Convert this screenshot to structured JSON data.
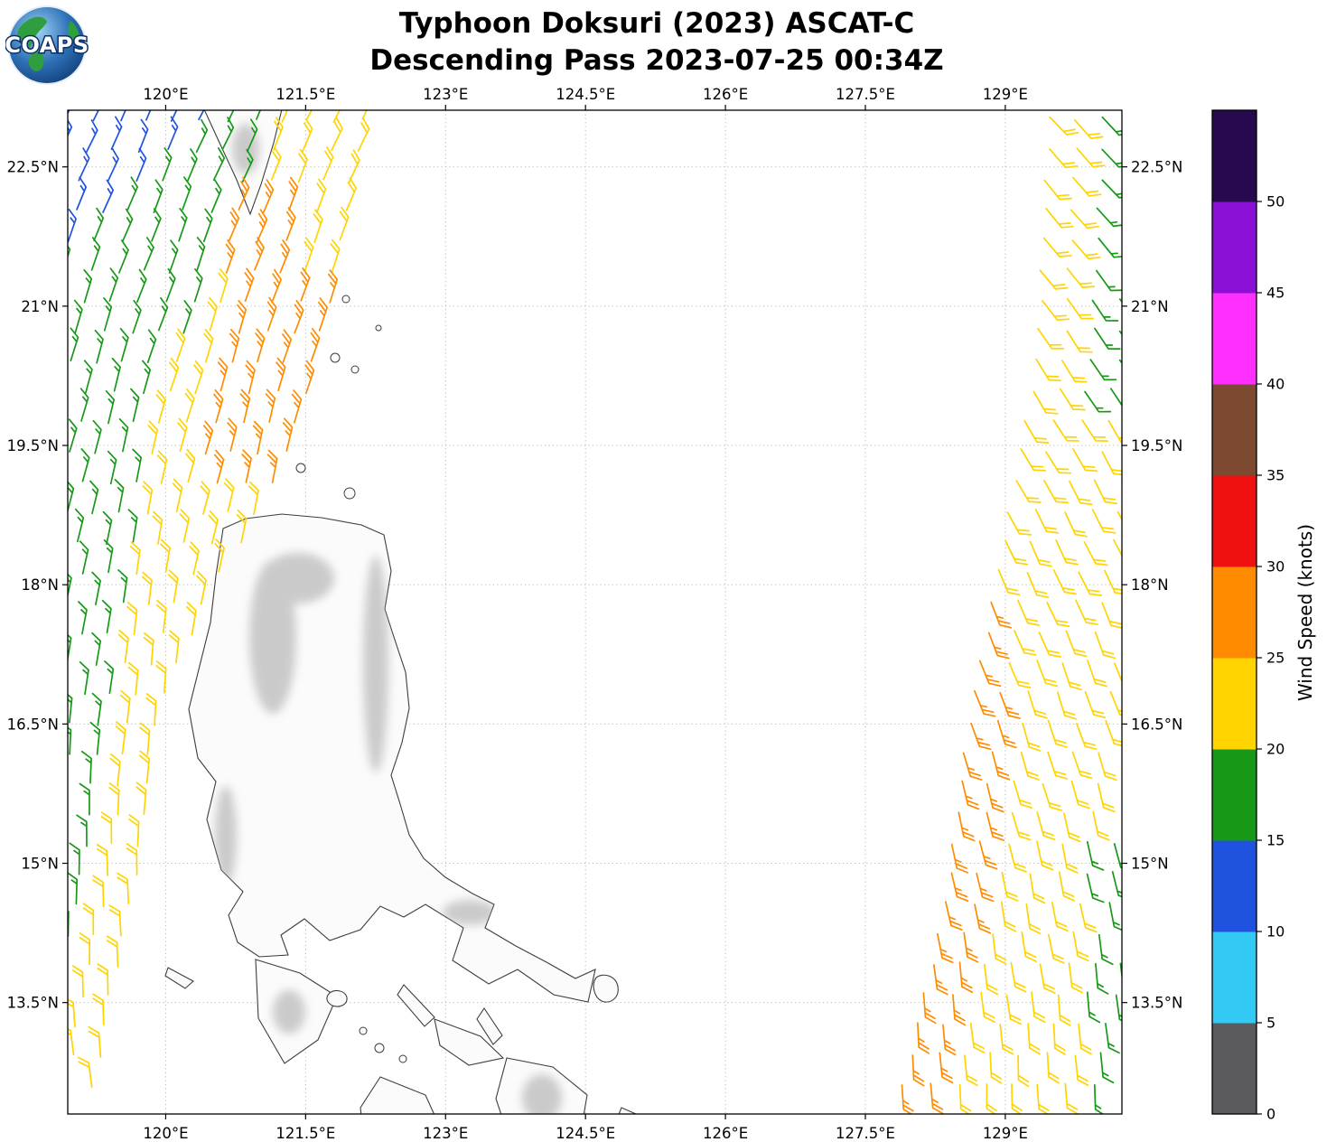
{
  "logo": {
    "text": "COAPS"
  },
  "header": {
    "title": "Typhoon Doksuri (2023) ASCAT-C",
    "subtitle": "Descending Pass 2023-07-25 00:34Z"
  },
  "chart_data": {
    "type": "wind_barb_map",
    "title": "Typhoon Doksuri (2023) ASCAT-C",
    "subtitle": "Descending Pass 2023-07-25 00:34Z",
    "x_axis": {
      "tick_values": [
        120,
        121.5,
        123,
        124.5,
        126,
        127.5,
        129
      ],
      "tick_labels": [
        "120°E",
        "121.5°E",
        "123°E",
        "124.5°E",
        "126°E",
        "127.5°E",
        "129°E"
      ],
      "range": [
        118.95,
        130.25
      ]
    },
    "y_axis": {
      "tick_values": [
        22.5,
        21,
        19.5,
        18,
        16.5,
        15,
        13.5
      ],
      "tick_labels": [
        "22.5°N",
        "21°N",
        "19.5°N",
        "18°N",
        "16.5°N",
        "15°N",
        "13.5°N"
      ],
      "range": [
        12.3,
        23.11
      ]
    },
    "grid": "dotted",
    "colorbar": {
      "label": "Wind Speed (knots)",
      "tick_values": [
        0,
        5,
        10,
        15,
        20,
        25,
        30,
        35,
        40,
        45,
        50
      ],
      "range": [
        0,
        55
      ],
      "segment_colors": [
        "#5a5a5c",
        "#33c9f5",
        "#2052e0",
        "#179917",
        "#ffd400",
        "#ff8c00",
        "#f01010",
        "#7b4a30",
        "#ff30ff",
        "#8a10d8",
        "#26094e"
      ]
    },
    "barb_speeds_knots": {
      "blue": 13,
      "green": 17,
      "yellow": 22,
      "orange": 27
    },
    "swaths": [
      {
        "name": "wind-barbs-west-swath",
        "edge_side": "right",
        "edge_points": [
          [
            23.1,
            122.25
          ],
          [
            21.0,
            121.85
          ],
          [
            19.5,
            121.45
          ],
          [
            18.5,
            120.95
          ],
          [
            18.0,
            120.6
          ],
          [
            17.0,
            120.18
          ],
          [
            16.5,
            119.98
          ],
          [
            15.0,
            119.82
          ],
          [
            13.5,
            119.5
          ],
          [
            12.3,
            119.3
          ]
        ],
        "columns": 14,
        "col_step": -0.29,
        "col_offset": -0.12,
        "row_lat_start": 23.0,
        "row_lat_end": 12.38,
        "row_step": 0.325,
        "direction_from": {
          "ref_lat": 18,
          "base_deg": 10,
          "per_lat_deg": 3.0
        },
        "speed_rules": [
          {
            "when": {
              "lat_min": 19.3,
              "lon_lt_line": {
                "lat0": 21.48,
                "lon0": 118.95,
                "slope": 1.098
              }
            },
            "speed": 13
          },
          {
            "when": {
              "lat_min": 19.3,
              "lon_lt_line": {
                "lat0": 19.5,
                "lon0": 119.72,
                "slope": 0.401
              }
            },
            "speed": 17
          },
          {
            "when": {
              "lat_min": 21.2,
              "lat_max": 22.1,
              "d_min": 0.45,
              "d_max": 1.35
            },
            "speed": 27
          },
          {
            "when": {
              "lat_min": 19.6,
              "lat_max": 21.2,
              "d_max": 1.2
            },
            "speed": 27
          },
          {
            "when": {
              "lat_min": 18.8,
              "lat_max": 19.6,
              "d_max_dyn": {
                "base": 1.2,
                "ref_lat": 19.6,
                "per_lat": -0.65
              }
            },
            "speed": 27
          },
          {
            "when": {
              "lat_min": 19.3
            },
            "speed": 22
          },
          {
            "when": {
              "lat_min": 14.0,
              "d_min_dyn": {
                "base": 0.5,
                "ref_lat": 16.5,
                "per_lat": 0.35,
                "floor": 0.5
              }
            },
            "speed": 17
          },
          {
            "when": {},
            "speed": 22
          }
        ]
      },
      {
        "name": "wind-barbs-east-swath",
        "edge_side": "left",
        "edge_points": [
          [
            23.1,
            129.4
          ],
          [
            20.4,
            129.26
          ],
          [
            18.0,
            128.82
          ],
          [
            16.5,
            128.53
          ],
          [
            14.6,
            128.29
          ],
          [
            12.3,
            127.76
          ]
        ],
        "columns": 9,
        "col_step": 0.29,
        "col_offset": 0.08,
        "row_lat_start": 23.02,
        "row_lat_end": 12.38,
        "row_step": 0.325,
        "direction_from": {
          "ref_lat": 15,
          "base_deg": 168,
          "per_lat_deg": -4.0
        },
        "speed_rules": [
          {
            "when": {
              "lat_min": 19.8,
              "lon_min": 129.78
            },
            "speed": 17
          },
          {
            "when": {
              "lat_max": 15.3,
              "lon_min": 129.85
            },
            "speed": 17
          },
          {
            "when": {
              "lat_max": 18.15,
              "d_max_dyn": {
                "base": 0.3,
                "ref_lat": 18.0,
                "per_lat": 0.07
              }
            },
            "speed": 27
          },
          {
            "when": {},
            "speed": 22
          }
        ]
      }
    ]
  }
}
